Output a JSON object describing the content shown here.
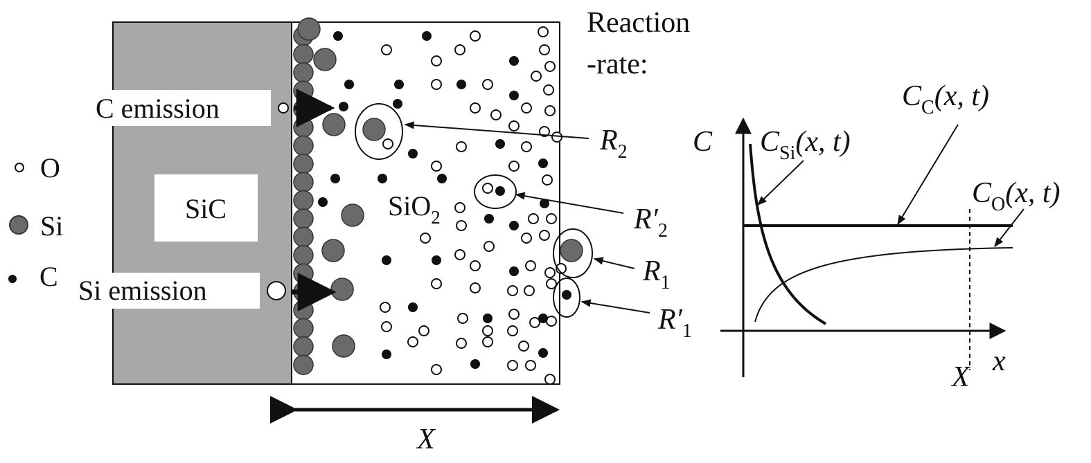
{
  "legend": {
    "o_label": "O",
    "si_label": "Si",
    "c_label": "C"
  },
  "regions": {
    "sic_label": "SiC",
    "sio2_label": "SiO",
    "sio2_subscript": "2"
  },
  "emissions": {
    "c_emission": "C emission",
    "si_emission": "Si emission"
  },
  "reaction_rate": {
    "line1": "Reaction",
    "line2": "-rate:",
    "r2": "R",
    "r2_sub": "2",
    "r2p": "R′",
    "r2p_sub": "2",
    "r1": "R",
    "r1_sub": "1",
    "r1p": "R′",
    "r1p_sub": "1"
  },
  "thickness_label": "X",
  "graph": {
    "y_axis_label": "C",
    "x_axis_label": "x",
    "x_marker_label": "X",
    "c_si": {
      "main": "C",
      "sub": "Si",
      "args": "(x, t)"
    },
    "c_c": {
      "main": "C",
      "sub": "C",
      "args": "(x, t)"
    },
    "c_o": {
      "main": "C",
      "sub": "O",
      "args": "(x, t)"
    }
  },
  "colors": {
    "sic_fill": "#a8a8a8",
    "si_atom": "#6a6a6a",
    "c_atom": "#111111",
    "line": "#111111"
  }
}
